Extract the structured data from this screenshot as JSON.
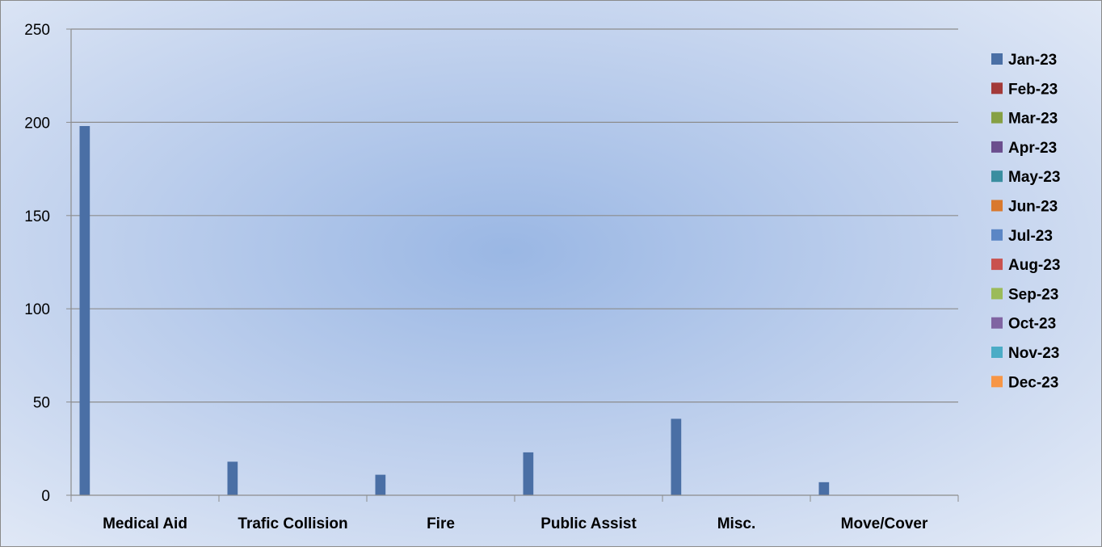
{
  "chart_data": {
    "type": "bar",
    "categories": [
      "Medical Aid",
      "Trafic Collision",
      "Fire",
      "Public Assist",
      "Misc.",
      "Move/Cover"
    ],
    "series": [
      {
        "name": "Jan-23",
        "color": "#4A6FA5",
        "values": [
          198,
          18,
          11,
          23,
          41,
          7
        ]
      },
      {
        "name": "Feb-23",
        "color": "#A33A3A",
        "values": [
          0,
          0,
          0,
          0,
          0,
          0
        ]
      },
      {
        "name": "Mar-23",
        "color": "#86A044",
        "values": [
          0,
          0,
          0,
          0,
          0,
          0
        ]
      },
      {
        "name": "Apr-23",
        "color": "#6B4E8E",
        "values": [
          0,
          0,
          0,
          0,
          0,
          0
        ]
      },
      {
        "name": "May-23",
        "color": "#3A8EA0",
        "values": [
          0,
          0,
          0,
          0,
          0,
          0
        ]
      },
      {
        "name": "Jun-23",
        "color": "#D9792E",
        "values": [
          0,
          0,
          0,
          0,
          0,
          0
        ]
      },
      {
        "name": "Jul-23",
        "color": "#5B86C5",
        "values": [
          0,
          0,
          0,
          0,
          0,
          0
        ]
      },
      {
        "name": "Aug-23",
        "color": "#C9524F",
        "values": [
          0,
          0,
          0,
          0,
          0,
          0
        ]
      },
      {
        "name": "Sep-23",
        "color": "#9BBB59",
        "values": [
          0,
          0,
          0,
          0,
          0,
          0
        ]
      },
      {
        "name": "Oct-23",
        "color": "#8064A2",
        "values": [
          0,
          0,
          0,
          0,
          0,
          0
        ]
      },
      {
        "name": "Nov-23",
        "color": "#4BACC6",
        "values": [
          0,
          0,
          0,
          0,
          0,
          0
        ]
      },
      {
        "name": "Dec-23",
        "color": "#F79646",
        "values": [
          0,
          0,
          0,
          0,
          0,
          0
        ]
      }
    ],
    "y_ticks": [
      "0",
      "50",
      "100",
      "150",
      "200",
      "250"
    ],
    "ylim": [
      0,
      250
    ],
    "grid": true,
    "legend_position": "right"
  }
}
